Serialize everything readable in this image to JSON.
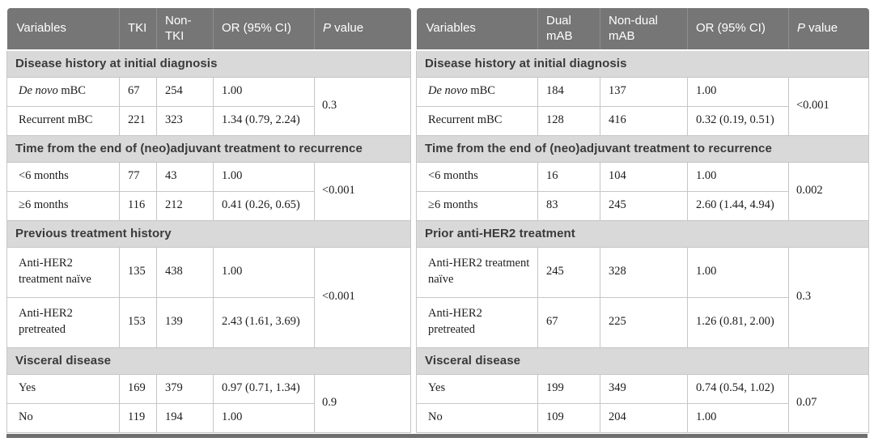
{
  "colors": {
    "header_bg": "#767676",
    "header_divider": "#8d8d8d",
    "band_bg": "#d9d9d9",
    "band_text": "#3a3a3a",
    "border": "#c6c6c6",
    "bar": "#6f6f6f"
  },
  "tables": [
    {
      "headers": [
        {
          "em": "",
          "text": "Variables"
        },
        {
          "em": "",
          "text": "TKI"
        },
        {
          "em": "",
          "text": "Non-TKI"
        },
        {
          "em": "",
          "text": "OR (95% CI)"
        },
        {
          "em": "P",
          "text": " value"
        }
      ],
      "sections": [
        {
          "title": "Disease history at initial diagnosis",
          "p": "0.3",
          "rows": [
            {
              "em": "De novo",
              "text": " mBC",
              "n1": "67",
              "n2": "254",
              "or": "1.00",
              "tall": false
            },
            {
              "em": "",
              "text": "Recurrent mBC",
              "n1": "221",
              "n2": "323",
              "or": "1.34 (0.79, 2.24)",
              "tall": false
            }
          ]
        },
        {
          "title": "Time from the end of (neo)adjuvant treatment to recurrence",
          "p": "<0.001",
          "rows": [
            {
              "em": "",
              "text": "<6 months",
              "n1": "77",
              "n2": "43",
              "or": "1.00",
              "tall": false
            },
            {
              "em": "",
              "text": "≥6 months",
              "n1": "116",
              "n2": "212",
              "or": "0.41 (0.26, 0.65)",
              "tall": false
            }
          ]
        },
        {
          "title": "Previous treatment history",
          "p": "<0.001",
          "rows": [
            {
              "em": "",
              "text": "Anti-HER2 treatment naïve",
              "n1": "135",
              "n2": "438",
              "or": "1.00",
              "tall": true
            },
            {
              "em": "",
              "text": "Anti-HER2 pretreated",
              "n1": "153",
              "n2": "139",
              "or": "2.43 (1.61, 3.69)",
              "tall": true
            }
          ]
        },
        {
          "title": "Visceral disease",
          "p": "0.9",
          "rows": [
            {
              "em": "",
              "text": "Yes",
              "n1": "169",
              "n2": "379",
              "or": "0.97 (0.71, 1.34)",
              "tall": false
            },
            {
              "em": "",
              "text": "No",
              "n1": "119",
              "n2": "194",
              "or": "1.00",
              "tall": false
            }
          ]
        }
      ]
    },
    {
      "headers": [
        {
          "em": "",
          "text": "Variables"
        },
        {
          "em": "",
          "text": "Dual mAB"
        },
        {
          "em": "",
          "text": "Non-dual mAB"
        },
        {
          "em": "",
          "text": "OR (95% CI)"
        },
        {
          "em": "P",
          "text": " value"
        }
      ],
      "sections": [
        {
          "title": "Disease history at initial diagnosis",
          "p": "<0.001",
          "rows": [
            {
              "em": "De novo",
              "text": " mBC",
              "n1": "184",
              "n2": "137",
              "or": "1.00",
              "tall": false
            },
            {
              "em": "",
              "text": "Recurrent mBC",
              "n1": "128",
              "n2": "416",
              "or": "0.32 (0.19, 0.51)",
              "tall": false
            }
          ]
        },
        {
          "title": "Time from the end of (neo)adjuvant treatment to recurrence",
          "p": "0.002",
          "rows": [
            {
              "em": "",
              "text": "<6 months",
              "n1": "16",
              "n2": "104",
              "or": "1.00",
              "tall": false
            },
            {
              "em": "",
              "text": "≥6 months",
              "n1": "83",
              "n2": "245",
              "or": "2.60 (1.44, 4.94)",
              "tall": false
            }
          ]
        },
        {
          "title": "Prior anti-HER2 treatment",
          "p": "0.3",
          "rows": [
            {
              "em": "",
              "text": "Anti-HER2 treatment naïve",
              "n1": "245",
              "n2": "328",
              "or": "1.00",
              "tall": true
            },
            {
              "em": "",
              "text": "Anti-HER2 pretreated",
              "n1": "67",
              "n2": "225",
              "or": "1.26 (0.81, 2.00)",
              "tall": true
            }
          ]
        },
        {
          "title": "Visceral disease",
          "p": "0.07",
          "rows": [
            {
              "em": "",
              "text": "Yes",
              "n1": "199",
              "n2": "349",
              "or": "0.74 (0.54, 1.02)",
              "tall": false
            },
            {
              "em": "",
              "text": "No",
              "n1": "109",
              "n2": "204",
              "or": "1.00",
              "tall": false
            }
          ]
        }
      ]
    }
  ]
}
